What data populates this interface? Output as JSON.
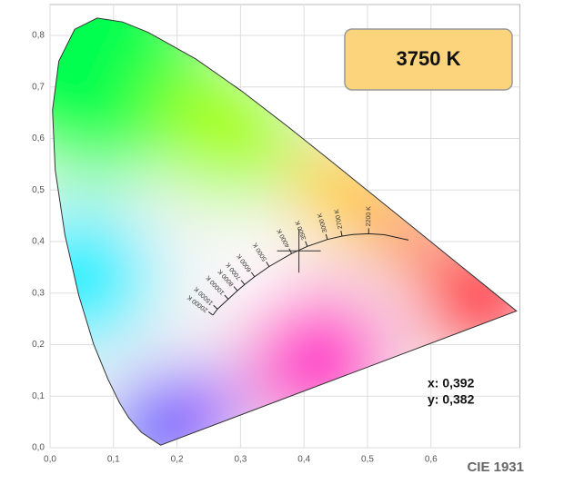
{
  "chart_data": {
    "type": "chromaticity",
    "title": "3750 K",
    "caption": "CIE 1931",
    "xlim": [
      0,
      0.74
    ],
    "ylim": [
      0,
      0.86
    ],
    "xticks": [
      {
        "value": 0,
        "label": "0,0"
      },
      {
        "value": 0.1,
        "label": "0,1"
      },
      {
        "value": 0.2,
        "label": "0,2"
      },
      {
        "value": 0.3,
        "label": "0,3"
      },
      {
        "value": 0.4,
        "label": "0,4"
      },
      {
        "value": 0.5,
        "label": "0,5"
      },
      {
        "value": 0.6,
        "label": "0,6"
      }
    ],
    "yticks": [
      {
        "value": 0,
        "label": "0,0"
      },
      {
        "value": 0.1,
        "label": "0,1"
      },
      {
        "value": 0.2,
        "label": "0,2"
      },
      {
        "value": 0.3,
        "label": "0,3"
      },
      {
        "value": 0.4,
        "label": "0,4"
      },
      {
        "value": 0.5,
        "label": "0,5"
      },
      {
        "value": 0.6,
        "label": "0,6"
      },
      {
        "value": 0.7,
        "label": "0,7"
      },
      {
        "value": 0.8,
        "label": "0,8"
      }
    ],
    "grid": true,
    "spectral_locus": {
      "x": [
        0.1741,
        0.144,
        0.1241,
        0.1096,
        0.0913,
        0.0687,
        0.0454,
        0.0235,
        0.0082,
        0.0039,
        0.0139,
        0.0389,
        0.0743,
        0.1142,
        0.1547,
        0.2296,
        0.3016,
        0.3731,
        0.4441,
        0.5125,
        0.5752,
        0.627,
        0.6915,
        0.7347
      ],
      "y": [
        0.005,
        0.0297,
        0.0578,
        0.0868,
        0.1327,
        0.2007,
        0.295,
        0.4127,
        0.5384,
        0.6548,
        0.7502,
        0.812,
        0.8338,
        0.8262,
        0.8059,
        0.7543,
        0.6923,
        0.6245,
        0.5547,
        0.4866,
        0.4242,
        0.3725,
        0.3083,
        0.2653
      ]
    },
    "planckian_locus": {
      "x": [
        0.5646,
        0.5267,
        0.5018,
        0.477,
        0.4599,
        0.4369,
        0.4053,
        0.3805,
        0.3451,
        0.3221,
        0.3064,
        0.2952,
        0.2807,
        0.2637,
        0.2565
      ],
      "y": [
        0.4029,
        0.4133,
        0.4153,
        0.4137,
        0.4106,
        0.4041,
        0.3907,
        0.3768,
        0.3516,
        0.3318,
        0.3166,
        0.3048,
        0.2883,
        0.269,
        0.2573
      ],
      "labels": [
        null,
        null,
        "2200 K",
        null,
        "2700 K",
        "3000 K",
        "3500 K",
        "4000 K",
        "5000 K",
        "6000 K",
        "7000 K",
        "8000 K",
        "10000 K",
        "15000 K",
        "20000 K"
      ]
    },
    "point": {
      "x": 0.392,
      "y": 0.382,
      "x_label": "x: 0,392",
      "y_label": "y: 0,382"
    }
  }
}
